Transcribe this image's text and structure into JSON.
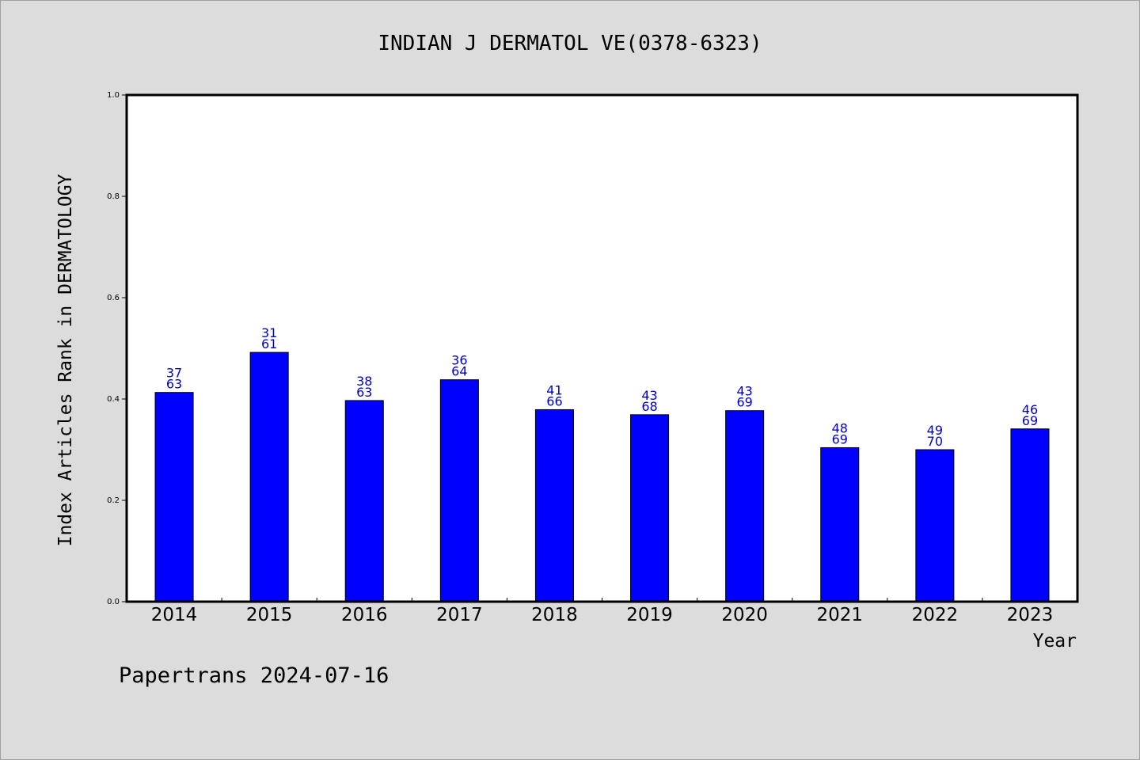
{
  "footer": {
    "credit": "Papertrans 2024-07-16"
  },
  "chart_data": {
    "type": "bar",
    "title": "INDIAN J DERMATOL VE(0378-6323)",
    "xlabel": "Year",
    "ylabel": "Index Articles Rank in DERMATOLOGY",
    "ylim": [
      0,
      1.0
    ],
    "yticks": [
      "0.0",
      "0.2",
      "0.4",
      "0.6",
      "0.8",
      "1.0"
    ],
    "grid": false,
    "categories": [
      "2014",
      "2015",
      "2016",
      "2017",
      "2018",
      "2019",
      "2020",
      "2021",
      "2022",
      "2023"
    ],
    "values": [
      0.413,
      0.492,
      0.397,
      0.438,
      0.379,
      0.369,
      0.377,
      0.304,
      0.3,
      0.341
    ],
    "labels_top": [
      "37",
      "31",
      "38",
      "36",
      "41",
      "43",
      "43",
      "48",
      "49",
      "46"
    ],
    "labels_bottom": [
      "63",
      "61",
      "63",
      "64",
      "66",
      "68",
      "69",
      "69",
      "70",
      "69"
    ],
    "colors": {
      "bar": "#0000ff",
      "label": "#0000cc",
      "axis": "#000000",
      "plot_bg": "#ffffff",
      "page_bg": "#dcdcdc"
    }
  }
}
